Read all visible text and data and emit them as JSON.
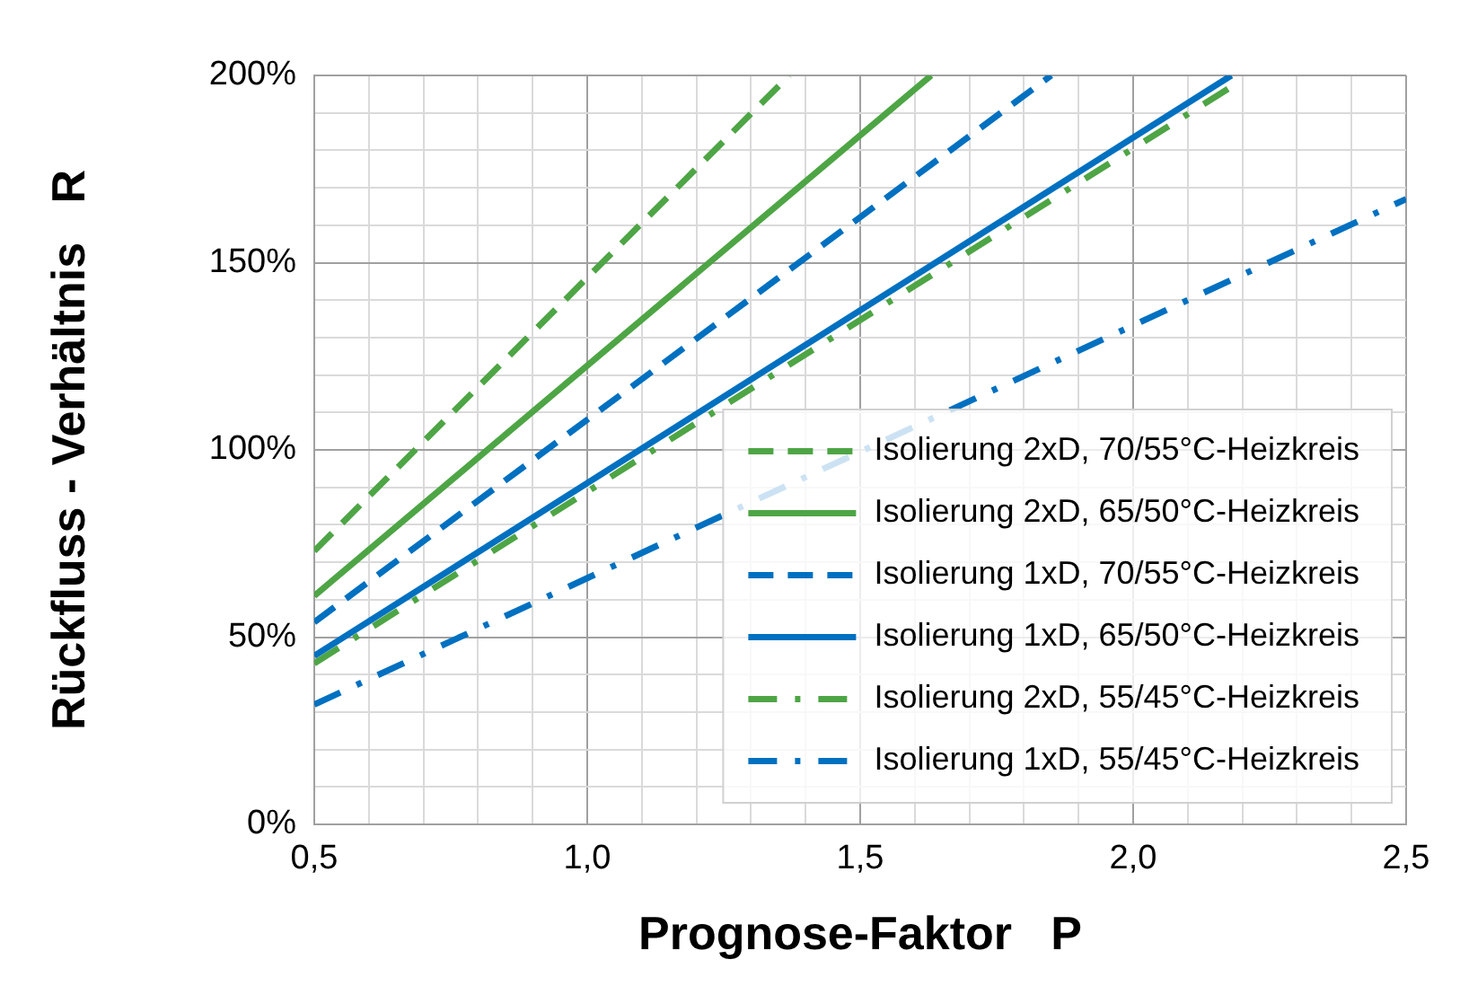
{
  "chart_data": {
    "type": "line",
    "xlabel": "Prognose-Faktor   P",
    "ylabel": "Rückfluss - Verhältnis   R",
    "xlim": [
      0.5,
      2.5
    ],
    "ylim": [
      0,
      200
    ],
    "xticks": [
      {
        "value": 0.5,
        "label": "0,5"
      },
      {
        "value": 0.6,
        "label": null
      },
      {
        "value": 0.7,
        "label": null
      },
      {
        "value": 0.8,
        "label": null
      },
      {
        "value": 0.9,
        "label": null
      },
      {
        "value": 1.0,
        "label": "1,0"
      },
      {
        "value": 1.1,
        "label": null
      },
      {
        "value": 1.2,
        "label": null
      },
      {
        "value": 1.3,
        "label": null
      },
      {
        "value": 1.4,
        "label": null
      },
      {
        "value": 1.5,
        "label": "1,5"
      },
      {
        "value": 1.6,
        "label": null
      },
      {
        "value": 1.7,
        "label": null
      },
      {
        "value": 1.8,
        "label": null
      },
      {
        "value": 1.9,
        "label": null
      },
      {
        "value": 2.0,
        "label": "2,0"
      },
      {
        "value": 2.1,
        "label": null
      },
      {
        "value": 2.2,
        "label": null
      },
      {
        "value": 2.3,
        "label": null
      },
      {
        "value": 2.4,
        "label": null
      },
      {
        "value": 2.5,
        "label": "2,5"
      }
    ],
    "yticks": [
      {
        "value": 0,
        "label": "0%"
      },
      {
        "value": 10,
        "label": null
      },
      {
        "value": 20,
        "label": null
      },
      {
        "value": 30,
        "label": null
      },
      {
        "value": 40,
        "label": null
      },
      {
        "value": 50,
        "label": "50%"
      },
      {
        "value": 60,
        "label": null
      },
      {
        "value": 70,
        "label": null
      },
      {
        "value": 80,
        "label": null
      },
      {
        "value": 90,
        "label": null
      },
      {
        "value": 100,
        "label": "100%"
      },
      {
        "value": 110,
        "label": null
      },
      {
        "value": 120,
        "label": null
      },
      {
        "value": 130,
        "label": null
      },
      {
        "value": 140,
        "label": null
      },
      {
        "value": 150,
        "label": "150%"
      },
      {
        "value": 160,
        "label": null
      },
      {
        "value": 170,
        "label": null
      },
      {
        "value": 180,
        "label": null
      },
      {
        "value": 190,
        "label": null
      },
      {
        "value": 200,
        "label": "200%"
      }
    ],
    "grid": true,
    "legend": "bottom right",
    "marker": "none",
    "series": [
      {
        "name": "Isolierung 2xD, 70/55°C-Heizkreis",
        "color": "#4ea545",
        "line_style": "dashed",
        "x": [
          0.5,
          1.37
        ],
        "values": [
          73,
          200
        ]
      },
      {
        "name": "Isolierung 2xD, 65/50°C-Heizkreis",
        "color": "#4ea545",
        "line_style": "solid",
        "x": [
          0.5,
          1.63
        ],
        "values": [
          61,
          200
        ]
      },
      {
        "name": "Isolierung 1xD, 70/55°C-Heizkreis",
        "color": "#0070c0",
        "line_style": "dashed",
        "x": [
          0.5,
          1.85
        ],
        "values": [
          54,
          200
        ]
      },
      {
        "name": "Isolierung 1xD, 65/50°C-Heizkreis",
        "color": "#0070c0",
        "line_style": "solid",
        "x": [
          0.5,
          2.18
        ],
        "values": [
          45,
          200
        ]
      },
      {
        "name": "Isolierung 2xD, 55/45°C-Heizkreis",
        "color": "#4ea545",
        "line_style": "dashdot",
        "x": [
          0.5,
          2.18
        ],
        "values": [
          43,
          197
        ]
      },
      {
        "name": "Isolierung 1xD, 55/45°C-Heizkreis",
        "color": "#0070c0",
        "line_style": "dashdot",
        "x": [
          0.5,
          2.5
        ],
        "values": [
          32,
          167
        ]
      }
    ]
  }
}
